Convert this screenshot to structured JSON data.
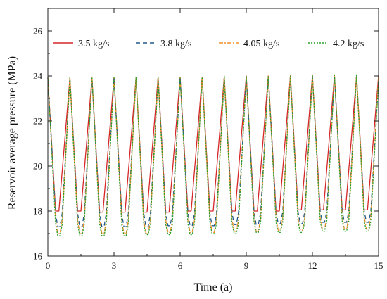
{
  "chart_data": {
    "type": "line",
    "title": "",
    "xlabel": "Time (a)",
    "ylabel": "Reservoir average pressure (MPa)",
    "xlim": [
      0,
      15
    ],
    "ylim": [
      16,
      27
    ],
    "xticks": [
      0,
      3,
      6,
      9,
      12,
      15
    ],
    "yticks": [
      16,
      18,
      20,
      22,
      24,
      26
    ],
    "grid": false,
    "legend_position": "top",
    "series": [
      {
        "name": "3.5 kg/s",
        "color": "#d62728",
        "dash": "solid",
        "x": [
          0,
          0.35,
          0.5,
          1.0,
          1.35,
          1.5,
          2.0,
          2.35,
          2.5,
          3.0,
          3.35,
          3.5,
          4.0,
          4.35,
          4.5,
          5.0,
          5.35,
          5.5,
          6.0,
          6.35,
          6.5,
          7.0,
          7.35,
          7.5,
          8.0,
          8.35,
          8.5,
          9.0,
          9.35,
          9.5,
          10.0,
          10.35,
          10.5,
          11.0,
          11.35,
          11.5,
          12.0,
          12.35,
          12.5,
          13.0,
          13.35,
          13.5,
          14.0,
          14.35,
          14.5,
          15.0
        ],
        "y": [
          23.9,
          18.0,
          18.0,
          23.9,
          18.0,
          18.0,
          23.9,
          17.95,
          17.95,
          23.9,
          17.95,
          17.95,
          23.9,
          17.95,
          17.95,
          23.95,
          17.95,
          17.95,
          23.95,
          18.0,
          18.0,
          23.95,
          18.0,
          18.0,
          23.95,
          18.0,
          18.0,
          24.0,
          18.0,
          18.0,
          24.0,
          18.0,
          18.0,
          24.0,
          18.05,
          18.05,
          24.0,
          18.05,
          18.05,
          24.0,
          18.05,
          18.05,
          24.0,
          18.05,
          18.05,
          24.0
        ]
      },
      {
        "name": "3.8 kg/s",
        "color": "#1f5a8a",
        "dash": "6,4",
        "x": [
          0,
          0.35,
          0.45,
          0.55,
          0.65,
          1.0,
          1.35,
          1.45,
          1.55,
          1.65,
          2.0,
          2.35,
          2.45,
          2.55,
          2.65,
          3.0,
          3.35,
          3.45,
          3.55,
          3.65,
          4.0,
          4.35,
          4.45,
          4.55,
          4.65,
          5.0,
          5.35,
          5.45,
          5.55,
          5.65,
          6.0,
          6.35,
          6.45,
          6.55,
          6.65,
          7.0,
          7.35,
          7.45,
          7.55,
          7.65,
          8.0,
          8.35,
          8.45,
          8.55,
          8.65,
          9.0,
          9.35,
          9.45,
          9.55,
          9.65,
          10.0,
          10.35,
          10.45,
          10.55,
          10.65,
          11.0,
          11.35,
          11.45,
          11.55,
          11.65,
          12.0,
          12.35,
          12.45,
          12.55,
          12.65,
          13.0,
          13.35,
          13.45,
          13.55,
          13.65,
          14.0,
          14.35,
          14.45,
          14.55,
          14.65,
          15.0
        ],
        "y": [
          23.9,
          17.9,
          17.3,
          17.3,
          17.9,
          23.9,
          17.9,
          17.3,
          17.3,
          17.9,
          23.9,
          17.9,
          17.3,
          17.3,
          17.9,
          23.9,
          17.9,
          17.3,
          17.3,
          17.9,
          23.9,
          17.9,
          17.3,
          17.3,
          17.9,
          23.9,
          17.9,
          17.35,
          17.35,
          17.9,
          23.9,
          17.9,
          17.35,
          17.35,
          17.9,
          23.9,
          17.9,
          17.35,
          17.35,
          17.9,
          23.9,
          17.95,
          17.4,
          17.4,
          17.95,
          23.95,
          17.95,
          17.4,
          17.4,
          17.95,
          23.95,
          17.95,
          17.45,
          17.45,
          17.95,
          23.95,
          17.95,
          17.45,
          17.45,
          17.95,
          24.0,
          18.0,
          17.5,
          17.5,
          18.0,
          24.0,
          18.0,
          17.5,
          17.5,
          18.0,
          24.0,
          18.0,
          17.5,
          17.5,
          18.0,
          23.9
        ]
      },
      {
        "name": "4.05 kg/s",
        "color": "#f0922b",
        "dash": "6,2,2,2",
        "x": [
          0,
          0.35,
          0.45,
          0.55,
          0.65,
          1.0,
          1.35,
          1.45,
          1.55,
          1.65,
          2.0,
          2.35,
          2.45,
          2.55,
          2.65,
          3.0,
          3.35,
          3.45,
          3.55,
          3.65,
          4.0,
          4.35,
          4.45,
          4.55,
          4.65,
          5.0,
          5.35,
          5.45,
          5.55,
          5.65,
          6.0,
          6.35,
          6.45,
          6.55,
          6.65,
          7.0,
          7.35,
          7.45,
          7.55,
          7.65,
          8.0,
          8.35,
          8.45,
          8.55,
          8.65,
          9.0,
          9.35,
          9.45,
          9.55,
          9.65,
          10.0,
          10.35,
          10.45,
          10.55,
          10.65,
          11.0,
          11.35,
          11.45,
          11.55,
          11.65,
          12.0,
          12.35,
          12.45,
          12.55,
          12.65,
          13.0,
          13.35,
          13.45,
          13.55,
          13.65,
          14.0,
          14.35,
          14.45,
          14.55,
          14.65,
          15.0
        ],
        "y": [
          23.95,
          17.6,
          17.0,
          17.0,
          17.6,
          23.95,
          17.6,
          17.0,
          17.0,
          17.6,
          23.95,
          17.6,
          17.0,
          17.0,
          17.6,
          23.95,
          17.6,
          17.0,
          17.0,
          17.6,
          23.95,
          17.6,
          17.0,
          17.0,
          17.6,
          23.95,
          17.6,
          17.05,
          17.05,
          17.6,
          23.95,
          17.6,
          17.05,
          17.05,
          17.6,
          23.95,
          17.65,
          17.05,
          17.05,
          17.65,
          24.0,
          17.65,
          17.1,
          17.1,
          17.65,
          24.0,
          17.65,
          17.1,
          17.1,
          17.65,
          24.0,
          17.7,
          17.15,
          17.15,
          17.7,
          24.05,
          17.7,
          17.15,
          17.15,
          17.7,
          24.05,
          17.7,
          17.2,
          17.2,
          17.7,
          24.05,
          17.75,
          17.2,
          17.2,
          17.75,
          24.05,
          17.75,
          17.2,
          17.2,
          17.75,
          24.05
        ]
      },
      {
        "name": "4.2 kg/s",
        "color": "#2ca02c",
        "dash": "2,2",
        "x": [
          0,
          0.35,
          0.45,
          0.55,
          0.65,
          1.0,
          1.35,
          1.45,
          1.55,
          1.65,
          2.0,
          2.35,
          2.45,
          2.55,
          2.65,
          3.0,
          3.35,
          3.45,
          3.55,
          3.65,
          4.0,
          4.35,
          4.45,
          4.55,
          4.65,
          5.0,
          5.35,
          5.45,
          5.55,
          5.65,
          6.0,
          6.35,
          6.45,
          6.55,
          6.65,
          7.0,
          7.35,
          7.45,
          7.55,
          7.65,
          8.0,
          8.35,
          8.45,
          8.55,
          8.65,
          9.0,
          9.35,
          9.45,
          9.55,
          9.65,
          10.0,
          10.35,
          10.45,
          10.55,
          10.65,
          11.0,
          11.35,
          11.45,
          11.55,
          11.65,
          12.0,
          12.35,
          12.45,
          12.55,
          12.65,
          13.0,
          13.35,
          13.45,
          13.55,
          13.65,
          14.0,
          14.35,
          14.45,
          14.55,
          14.65,
          15.0
        ],
        "y": [
          23.95,
          17.4,
          16.9,
          16.9,
          17.4,
          23.95,
          17.4,
          16.9,
          16.9,
          17.4,
          23.95,
          17.4,
          16.9,
          16.9,
          17.4,
          23.95,
          17.4,
          16.9,
          16.9,
          17.4,
          23.95,
          17.4,
          16.95,
          16.95,
          17.4,
          23.95,
          17.4,
          16.95,
          16.95,
          17.4,
          23.95,
          17.45,
          16.95,
          16.95,
          17.45,
          23.95,
          17.45,
          17.0,
          17.0,
          17.45,
          24.0,
          17.45,
          17.0,
          17.0,
          17.45,
          24.0,
          17.5,
          17.05,
          17.05,
          17.5,
          24.0,
          17.5,
          17.05,
          17.05,
          17.5,
          24.0,
          17.5,
          17.05,
          17.05,
          17.5,
          24.05,
          17.55,
          17.1,
          17.1,
          17.55,
          24.05,
          17.55,
          17.1,
          17.1,
          17.55,
          24.05,
          17.55,
          17.1,
          17.1,
          17.55,
          23.8
        ]
      }
    ]
  }
}
